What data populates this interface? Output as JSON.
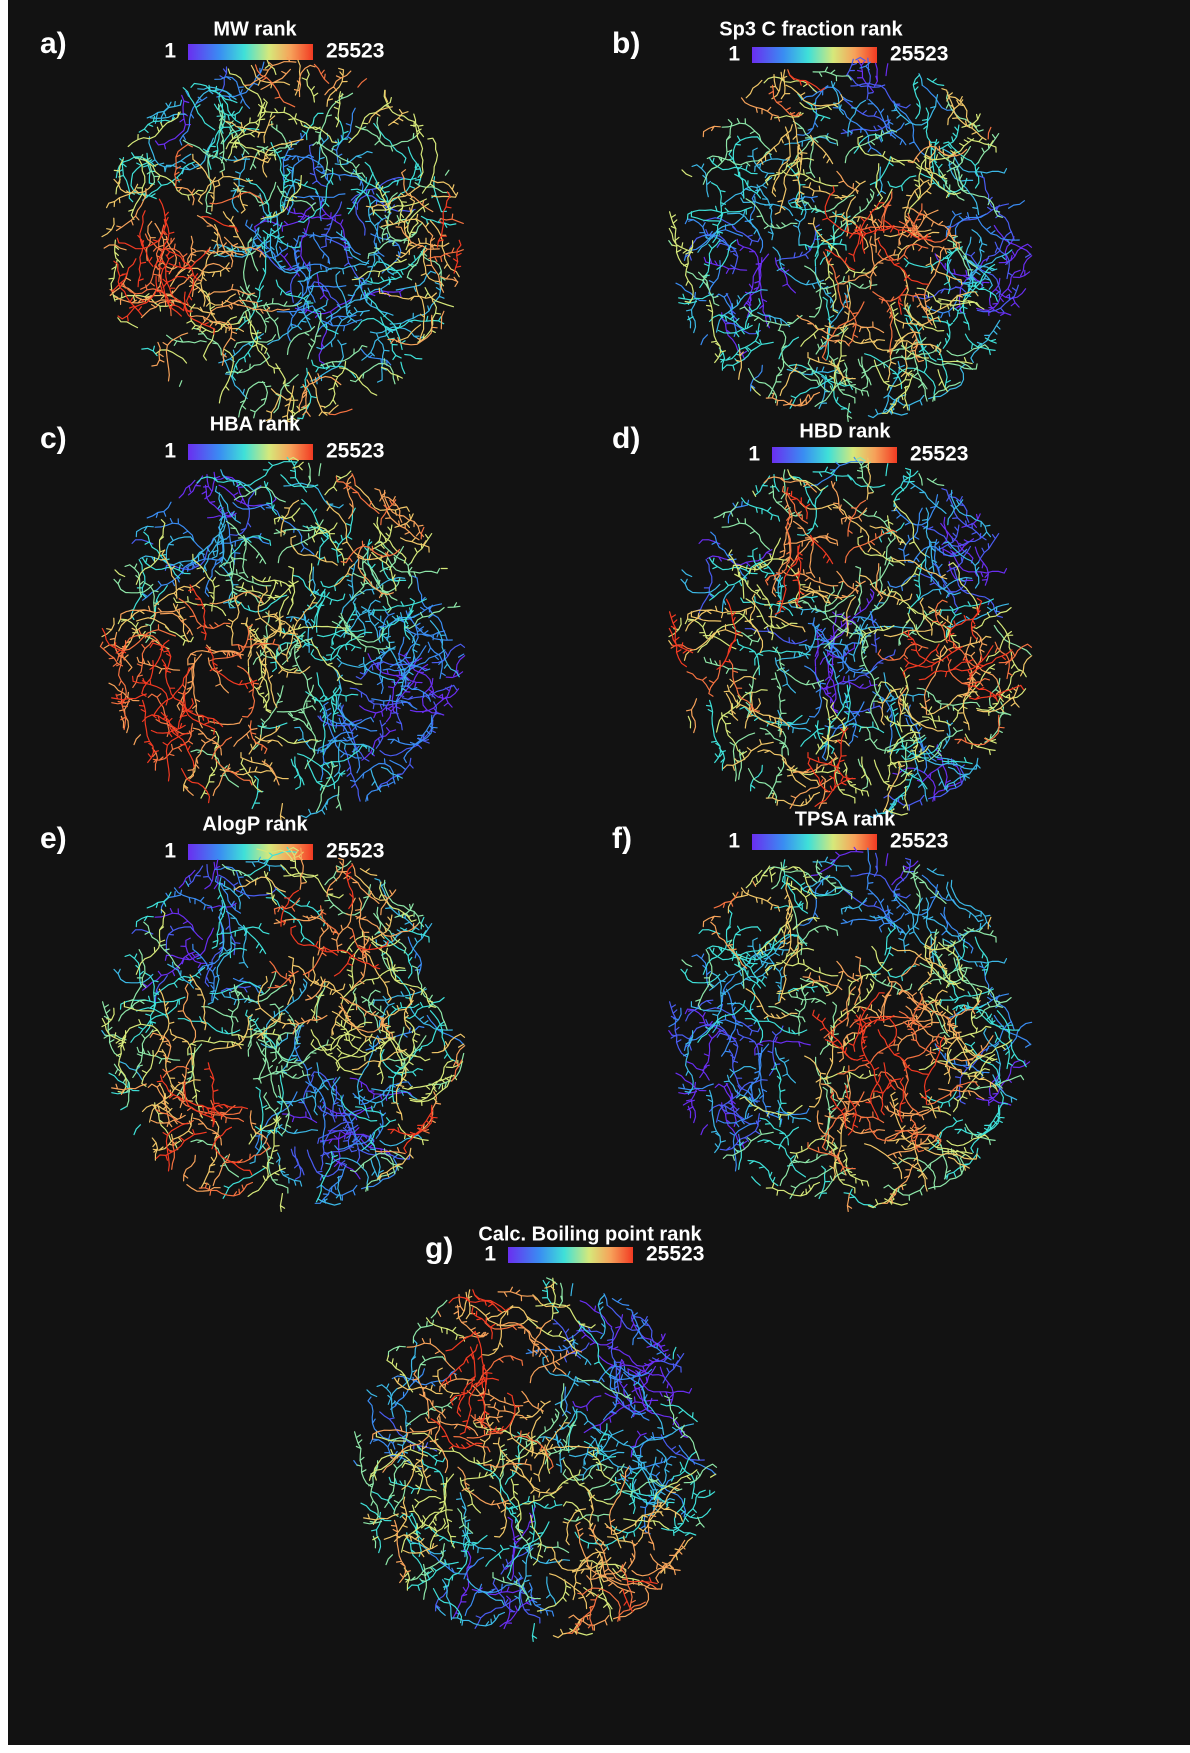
{
  "panels": [
    {
      "label": "a)",
      "title": "MW rank",
      "min": 1,
      "max": 25523
    },
    {
      "label": "b)",
      "title": "Sp3 C fraction rank",
      "min": 1,
      "max": 25523
    },
    {
      "label": "c)",
      "title": "HBA rank",
      "min": 1,
      "max": 25523
    },
    {
      "label": "d)",
      "title": "HBD rank",
      "min": 1,
      "max": 25523
    },
    {
      "label": "e)",
      "title": "AlogP rank",
      "min": 1,
      "max": 25523
    },
    {
      "label": "f)",
      "title": "TPSA rank",
      "min": 1,
      "max": 25523
    },
    {
      "label": "g)",
      "title": "Calc. Boiling point rank",
      "min": 1,
      "max": 25523
    }
  ]
}
